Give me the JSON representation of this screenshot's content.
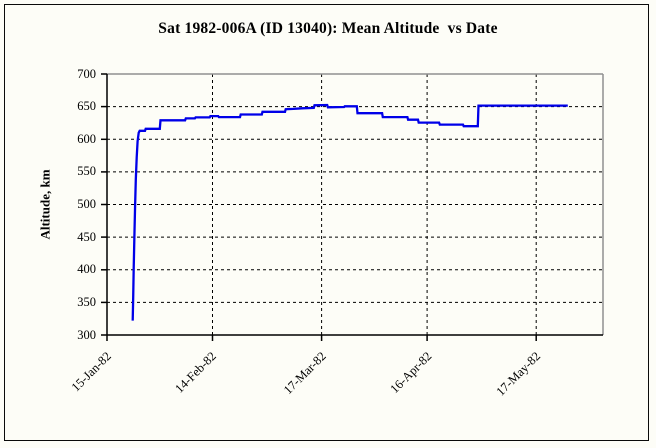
{
  "figure": {
    "title": "Sat 1982-006A (ID 13040): Mean Altitude  vs Date",
    "background": "#fdfdf7",
    "outer_border_color": "#0a0a0a"
  },
  "chart_data": {
    "type": "line",
    "title": "Sat 1982-006A (ID 13040): Mean Altitude  vs Date",
    "xlabel": "",
    "ylabel": "Altitude, km",
    "ylim": [
      300,
      700
    ],
    "yticks": [
      300,
      350,
      400,
      450,
      500,
      550,
      600,
      650,
      700
    ],
    "xticks": [
      {
        "label": "15-Jan-82",
        "day": 0
      },
      {
        "label": "14-Feb-82",
        "day": 30
      },
      {
        "label": "17-Mar-82",
        "day": 61
      },
      {
        "label": "16-Apr-82",
        "day": 91
      },
      {
        "label": "17-May-82",
        "day": 122
      }
    ],
    "xlim_days": [
      0,
      141
    ],
    "grid": "dashed",
    "legend": "none",
    "line_color": "#0000e8",
    "axis_color": "#000000",
    "plot_border_gray": "#909090",
    "series": [
      {
        "name": "Mean Altitude",
        "units": "km vs days after 15-Jan-82",
        "points_day_altkm": [
          [
            7.3,
            322
          ],
          [
            7.45,
            358
          ],
          [
            7.6,
            402
          ],
          [
            7.8,
            452
          ],
          [
            8.0,
            498
          ],
          [
            8.2,
            538
          ],
          [
            8.45,
            572
          ],
          [
            8.7,
            597
          ],
          [
            9.0,
            610
          ],
          [
            9.3,
            613
          ],
          [
            10.8,
            613
          ],
          [
            11.0,
            616
          ],
          [
            15.0,
            616
          ],
          [
            15.2,
            629
          ],
          [
            22.2,
            629
          ],
          [
            22.4,
            632
          ],
          [
            25.0,
            632
          ],
          [
            25.2,
            633.5
          ],
          [
            29.2,
            633.5
          ],
          [
            29.4,
            635.5
          ],
          [
            31.6,
            635.5
          ],
          [
            31.8,
            634
          ],
          [
            37.8,
            634
          ],
          [
            38.0,
            638
          ],
          [
            44.0,
            638
          ],
          [
            44.2,
            642
          ],
          [
            50.6,
            642
          ],
          [
            50.8,
            646
          ],
          [
            53.0,
            646.5
          ],
          [
            55.5,
            647.5
          ],
          [
            58.8,
            648
          ],
          [
            59.0,
            652
          ],
          [
            62.6,
            652.5
          ],
          [
            62.8,
            649
          ],
          [
            67.4,
            649.5
          ],
          [
            67.6,
            650.5
          ],
          [
            71.0,
            650.5
          ],
          [
            71.2,
            640
          ],
          [
            78.2,
            640
          ],
          [
            78.4,
            634
          ],
          [
            85.4,
            634
          ],
          [
            85.6,
            630
          ],
          [
            88.4,
            630
          ],
          [
            88.6,
            625.5
          ],
          [
            94.4,
            625.5
          ],
          [
            94.6,
            622.5
          ],
          [
            101.2,
            622.5
          ],
          [
            101.4,
            620
          ],
          [
            105.4,
            620
          ],
          [
            105.6,
            651.5
          ],
          [
            131.0,
            651.5
          ]
        ]
      }
    ]
  }
}
